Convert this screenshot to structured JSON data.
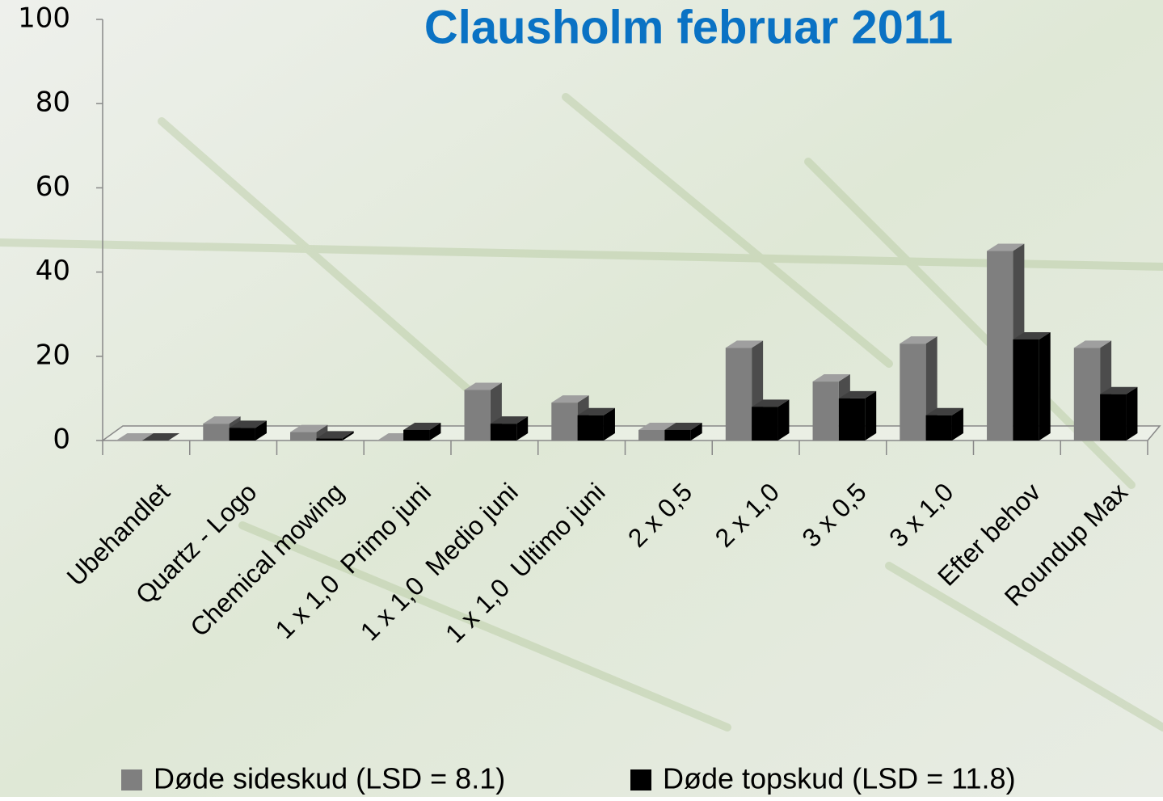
{
  "chart_data": {
    "type": "bar3d",
    "title": "Clausholm februar 2011",
    "categories": [
      "Ubehandlet",
      "Quartz - Logo",
      "Chemical mowing",
      "1 x 1,0  Primo juni",
      "1 x 1,0  Medio juni",
      "1 x 1,0  Ultimo juni",
      "2 x 0,5",
      "2 x 1,0",
      "3 x 0,5",
      "3 x 1,0",
      "Efter behov",
      "Roundup Max"
    ],
    "series": [
      {
        "name": "Døde sideskud (LSD = 8.1)",
        "color": "#7f7f7f",
        "values": [
          0,
          4,
          2,
          0,
          12,
          9,
          2.5,
          22,
          14,
          23,
          45,
          22
        ]
      },
      {
        "name": "Døde topskud (LSD = 11.8)",
        "color": "#000000",
        "values": [
          0,
          3,
          0.5,
          2.5,
          4,
          6,
          2.5,
          8,
          10,
          6,
          24,
          11
        ]
      }
    ],
    "ylim": [
      0,
      100
    ],
    "yticks": [
      0,
      20,
      40,
      60,
      80,
      100
    ],
    "grid": false
  }
}
